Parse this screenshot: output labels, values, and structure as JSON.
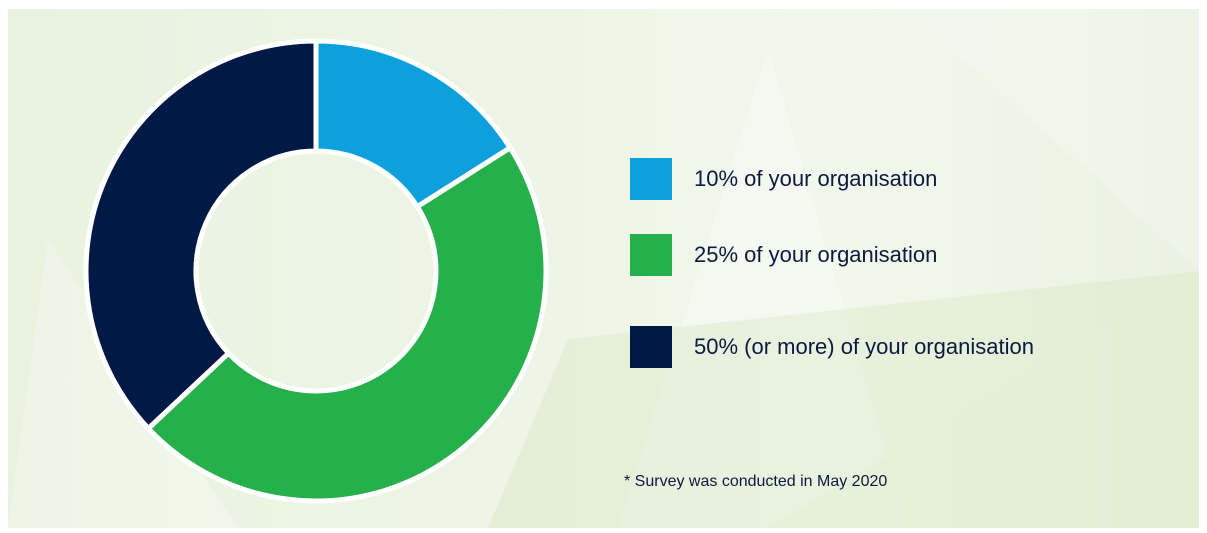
{
  "chart_data": {
    "type": "pie",
    "variant": "donut",
    "categories": [
      "10% of your organisation",
      "25% of your organisation",
      "50% (or more) of your organisation"
    ],
    "values": [
      16,
      47,
      37
    ],
    "colors": [
      "#0ea0dc",
      "#26b04b",
      "#001a45"
    ],
    "title": "",
    "legend": "right"
  },
  "footnote": "* Survey was conducted in May 2020"
}
